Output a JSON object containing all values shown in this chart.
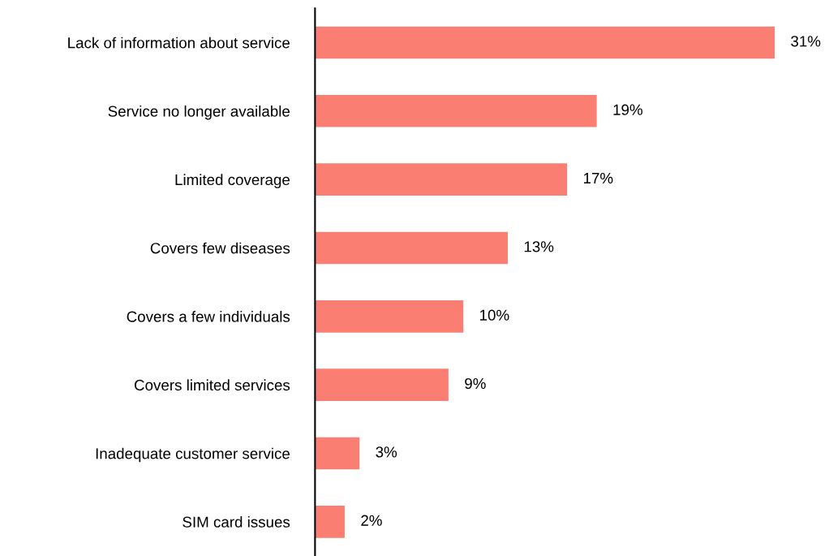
{
  "chart_data": {
    "type": "bar",
    "orientation": "horizontal",
    "categories": [
      "Lack of information about service",
      "Service no longer available",
      "Limited coverage",
      "Covers few diseases",
      "Covers a few individuals",
      "Covers limited services",
      "Inadequate customer service",
      "SIM card issues"
    ],
    "values": [
      31,
      19,
      17,
      13,
      10,
      9,
      3,
      2
    ],
    "value_labels": [
      "31%",
      "19%",
      "17%",
      "13%",
      "10%",
      "9%",
      "3%",
      "2%"
    ],
    "color": "#fa7f72",
    "grid": false,
    "legend": false,
    "tick_labels": "y"
  }
}
